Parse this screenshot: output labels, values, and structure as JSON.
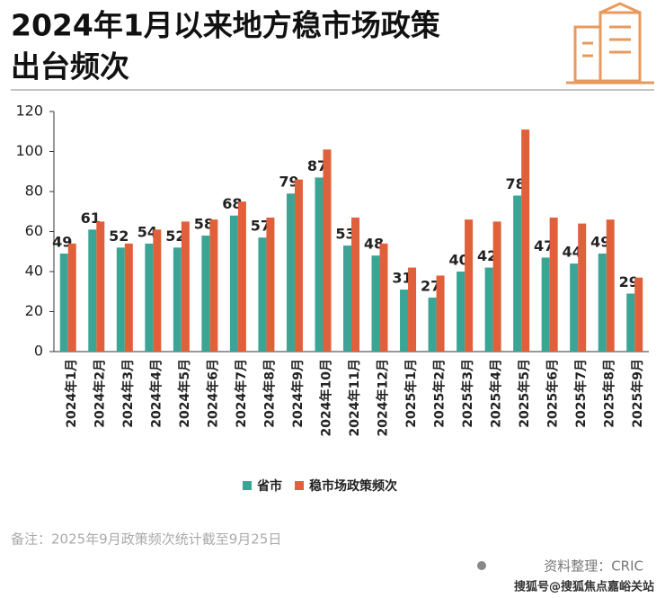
{
  "chart_data": {
    "type": "bar",
    "title_lines": [
      "2024年1月以来地方稳市场政策",
      "出台频次"
    ],
    "categories": [
      "2024年1月",
      "2024年2月",
      "2024年3月",
      "2024年4月",
      "2024年5月",
      "2024年6月",
      "2024年7月",
      "2024年8月",
      "2024年9月",
      "2024年10月",
      "2024年11月",
      "2024年12月",
      "2025年1月",
      "2025年2月",
      "2025年3月",
      "2025年4月",
      "2025年5月",
      "2025年6月",
      "2025年7月",
      "2025年8月",
      "2025年9月"
    ],
    "series": [
      {
        "name": "省市",
        "color": "#3aa595",
        "values": [
          49,
          61,
          52,
          54,
          52,
          58,
          68,
          57,
          79,
          87,
          53,
          48,
          31,
          27,
          40,
          42,
          78,
          47,
          44,
          49,
          29
        ],
        "show_labels": true
      },
      {
        "name": "稳市场政策频次",
        "color": "#e0603c",
        "values": [
          54,
          65,
          54,
          61,
          65,
          66,
          75,
          67,
          86,
          101,
          67,
          54,
          42,
          38,
          66,
          65,
          111,
          67,
          64,
          66,
          37
        ],
        "show_labels": false
      }
    ],
    "ylim": [
      0,
      120
    ],
    "yticks": [
      0,
      20,
      40,
      60,
      80,
      100,
      120
    ],
    "grid": false,
    "note": "备注：2025年9月政策频次统计截至9月25日",
    "source": "资料整理：CRIC",
    "watermark": "搜狐号@搜狐焦点嘉峪关站"
  }
}
